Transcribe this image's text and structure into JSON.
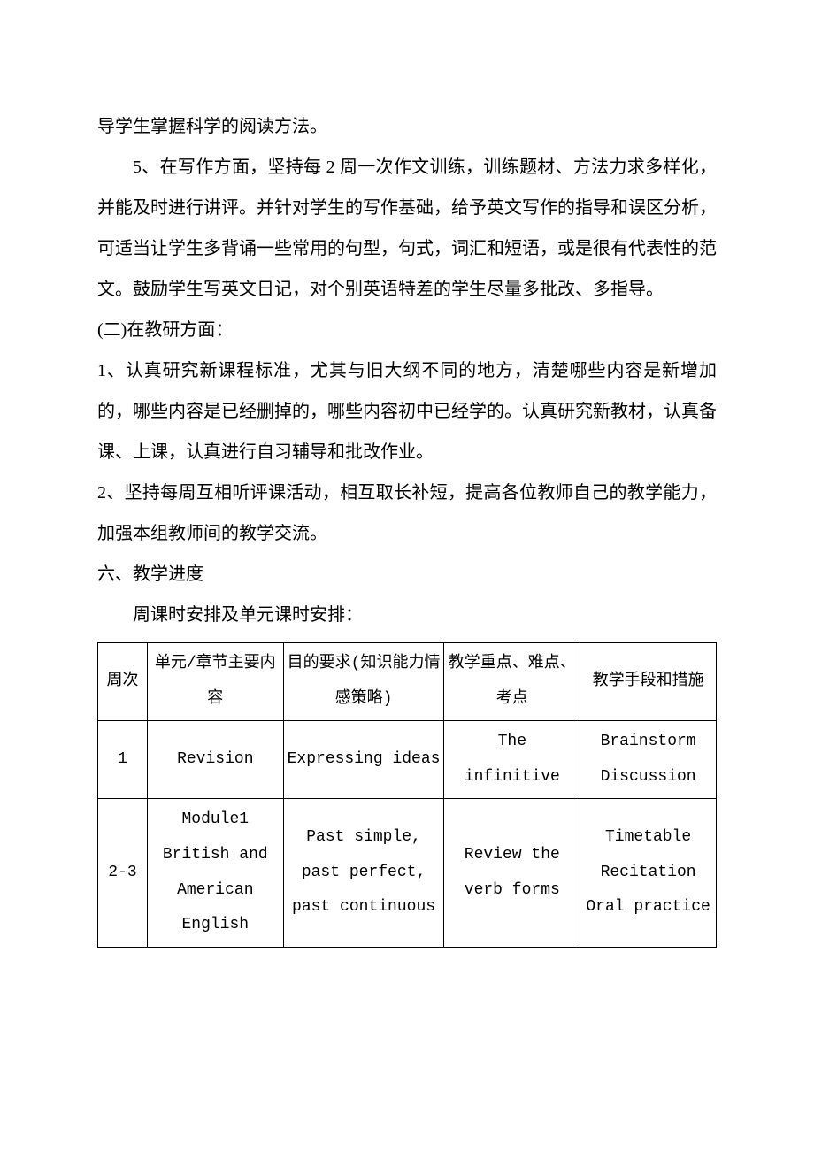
{
  "paragraphs": {
    "p0": "导学生掌握科学的阅读方法。",
    "p1": "5、在写作方面，坚持每 2 周一次作文训练，训练题材、方法力求多样化，并能及时进行讲评。并针对学生的写作基础，给予英文写作的指导和误区分析，可适当让学生多背诵一些常用的句型，句式，词汇和短语，或是很有代表性的范文。鼓励学生写英文日记，对个别英语特差的学生尽量多批改、多指导。",
    "sec2_title": "(二)在教研方面：",
    "p2": "1、认真研究新课程标准，尤其与旧大纲不同的地方，清楚哪些内容是新增加的，哪些内容是已经删掉的，哪些内容初中已经学的。认真研究新教材，认真备课、上课，认真进行自习辅导和批改作业。",
    "p3": "2、坚持每周互相听评课活动，相互取长补短，提高各位教师自己的教学能力，加强本组教师间的教学交流。",
    "sec6_title": "六、教学进度",
    "p4": "周课时安排及单元课时安排："
  },
  "table": {
    "headers": {
      "week": "周次",
      "content": "单元/章节主要内容",
      "purpose": "目的要求(知识能力情感策略)",
      "focus": "教学重点、难点、考点",
      "method": "教学手段和措施"
    },
    "rows": [
      {
        "week": "1",
        "content": "Revision",
        "purpose": "Expressing ideas",
        "focus": "The infinitive",
        "method": "Brainstorm Discussion"
      },
      {
        "week": "2-3",
        "content": "Module1 British and American English",
        "purpose": "Past simple, past perfect, past continuous",
        "focus": "Review the verb forms",
        "method": "Timetable Recitation Oral practice"
      }
    ]
  }
}
